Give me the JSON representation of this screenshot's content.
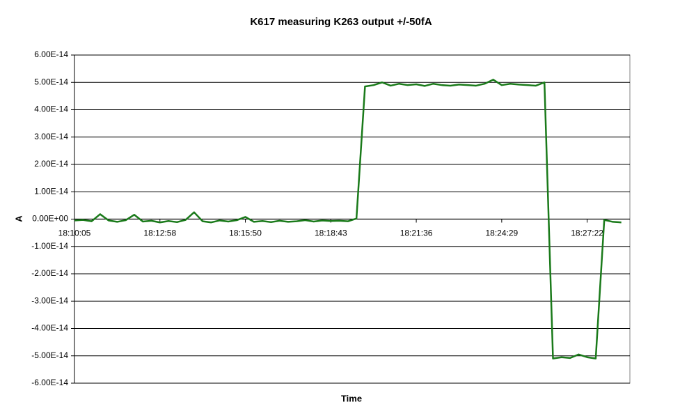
{
  "chart_data": {
    "type": "line",
    "title": "K617 measuring K263 output +/-50fA",
    "x_label": "Time",
    "y_label": "A",
    "categories": [
      "18:10:05",
      null,
      null,
      null,
      null,
      null,
      null,
      null,
      null,
      null,
      "18:12:58",
      null,
      null,
      null,
      null,
      null,
      null,
      null,
      null,
      null,
      "18:15:50",
      null,
      null,
      null,
      null,
      null,
      null,
      null,
      null,
      null,
      "18:18:43",
      null,
      null,
      null,
      null,
      null,
      null,
      null,
      null,
      null,
      "18:21:36",
      null,
      null,
      null,
      null,
      null,
      null,
      null,
      null,
      null,
      "18:24:29",
      null,
      null,
      null,
      null,
      null,
      null,
      null,
      null,
      null,
      "18:27:22",
      null,
      null,
      null,
      null,
      null
    ],
    "values": [
      -5e-16,
      -3e-16,
      -8e-16,
      1.8e-15,
      -5e-16,
      -1e-15,
      -4e-16,
      1.6e-15,
      -9e-16,
      -6e-16,
      -1.2e-15,
      -7e-16,
      -1.1e-15,
      -3e-16,
      2.5e-15,
      -8e-16,
      -1.2e-15,
      -5e-16,
      -9e-16,
      -4e-16,
      8e-16,
      -1e-15,
      -7e-16,
      -1.1e-15,
      -6e-16,
      -1e-15,
      -8e-16,
      -4e-16,
      -9e-16,
      -5e-16,
      -7e-16,
      -6e-16,
      -8e-16,
      2e-16,
      4.85e-14,
      4.9e-14,
      5e-14,
      4.88e-14,
      4.95e-14,
      4.9e-14,
      4.93e-14,
      4.87e-14,
      4.95e-14,
      4.9e-14,
      4.88e-14,
      4.92e-14,
      4.9e-14,
      4.88e-14,
      4.95e-14,
      5.1e-14,
      4.9e-14,
      4.95e-14,
      4.92e-14,
      4.9e-14,
      4.88e-14,
      5e-14,
      -5.1e-14,
      -5.05e-14,
      -5.08e-14,
      -4.95e-14,
      -5.05e-14,
      -5.1e-14,
      -3e-16,
      -1e-15,
      -1.2e-15,
      null
    ],
    "color": "#1a7a1a",
    "ylim": [
      -6e-14,
      6e-14
    ],
    "yticks": [
      {
        "value": 6e-14,
        "label": "6.00E-14"
      },
      {
        "value": 5e-14,
        "label": "5.00E-14"
      },
      {
        "value": 4e-14,
        "label": "4.00E-14"
      },
      {
        "value": 3e-14,
        "label": "3.00E-14"
      },
      {
        "value": 2e-14,
        "label": "2.00E-14"
      },
      {
        "value": 1e-14,
        "label": "1.00E-14"
      },
      {
        "value": 0,
        "label": "0.00E+00"
      },
      {
        "value": -1e-14,
        "label": "-1.00E-14"
      },
      {
        "value": -2e-14,
        "label": "-2.00E-14"
      },
      {
        "value": -3e-14,
        "label": "-3.00E-14"
      },
      {
        "value": -4e-14,
        "label": "-4.00E-14"
      },
      {
        "value": -5e-14,
        "label": "-5.00E-14"
      },
      {
        "value": -6e-14,
        "label": "-6.00E-14"
      }
    ],
    "grid": true
  }
}
